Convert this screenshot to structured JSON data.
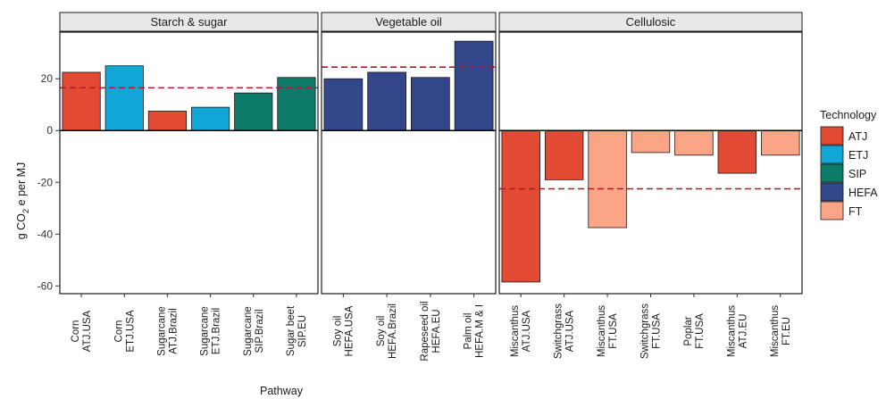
{
  "chart_data": {
    "type": "bar",
    "xlabel": "Pathway",
    "ylabel": {
      "prefix": "g CO",
      "sub": "2",
      "suffix": " e per MJ"
    },
    "ylim": [
      -63,
      38
    ],
    "yticks": [
      "20",
      "0",
      "-20",
      "-40",
      "-60"
    ],
    "yvalues": [
      20,
      0,
      -20,
      -40,
      -60
    ],
    "legend": {
      "title": "Technology",
      "placement": "right",
      "entries": [
        {
          "label": "ATJ",
          "color": "#e34a33"
        },
        {
          "label": "ETJ",
          "color": "#12a6d6"
        },
        {
          "label": "SIP",
          "color": "#0d7a6a"
        },
        {
          "label": "HEFA",
          "color": "#34468a"
        },
        {
          "label": "FT",
          "color": "#fca486"
        }
      ]
    },
    "panels": [
      {
        "strip": "Starch & sugar",
        "mean": 16.5,
        "bars": [
          {
            "line1": "Corn",
            "line2": "ATJ.USA",
            "value": 22.5,
            "tech": "ATJ"
          },
          {
            "line1": "Corn",
            "line2": "ETJ.USA",
            "value": 25,
            "tech": "ETJ"
          },
          {
            "line1": "Sugarcane",
            "line2": "ATJ.Brazil",
            "value": 7.5,
            "tech": "ATJ"
          },
          {
            "line1": "Sugarcane",
            "line2": "ETJ.Brazil",
            "value": 9,
            "tech": "ETJ"
          },
          {
            "line1": "Sugarcane",
            "line2": "SIP.Brazil",
            "value": 14.5,
            "tech": "SIP"
          },
          {
            "line1": "Sugar beet",
            "line2": "SIP.EU",
            "value": 20.5,
            "tech": "SIP"
          }
        ]
      },
      {
        "strip": "Vegetable oil",
        "mean": 24.5,
        "bars": [
          {
            "line1": "Soy oil",
            "line2": "HEFA.USA",
            "value": 20,
            "tech": "HEFA"
          },
          {
            "line1": "Soy oil",
            "line2": "HEFA.Brazil",
            "value": 22.5,
            "tech": "HEFA"
          },
          {
            "line1": "Rapeseed oil",
            "line2": "HEFA.EU",
            "value": 20.5,
            "tech": "HEFA"
          },
          {
            "line1": "Palm oil",
            "line2": "HEFA.M & I",
            "value": 34.5,
            "tech": "HEFA"
          }
        ]
      },
      {
        "strip": "Cellulosic",
        "mean": -22.5,
        "bars": [
          {
            "line1": "Miscanthus",
            "line2": "ATJ.USA",
            "value": -58.5,
            "tech": "ATJ"
          },
          {
            "line1": "Switchgrass",
            "line2": "ATJ.USA",
            "value": -19,
            "tech": "ATJ"
          },
          {
            "line1": "Miscanthus",
            "line2": "FT.USA",
            "value": -37.5,
            "tech": "FT"
          },
          {
            "line1": "Switchgrass",
            "line2": "FT.USA",
            "value": -8.5,
            "tech": "FT"
          },
          {
            "line1": "Poplar",
            "line2": "FT.USA",
            "value": -9.5,
            "tech": "FT"
          },
          {
            "line1": "Miscanthus",
            "line2": "ATJ.EU",
            "value": -16.5,
            "tech": "ATJ"
          },
          {
            "line1": "Miscanthus",
            "line2": "FT.EU",
            "value": -9.5,
            "tech": "FT"
          }
        ]
      }
    ]
  }
}
